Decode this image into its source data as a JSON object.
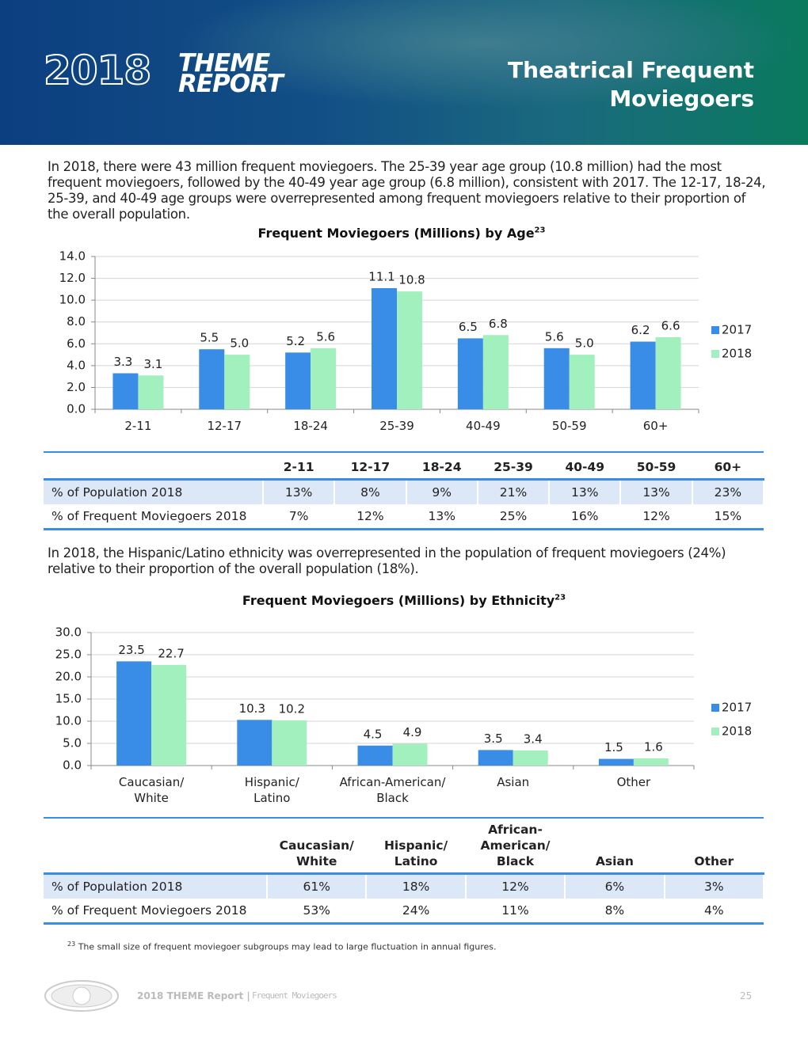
{
  "header": {
    "logo_year": "2018",
    "logo_word1": "THEME",
    "logo_word2": "REPORT",
    "title_line1": "Theatrical Frequent",
    "title_line2": "Moviegoers"
  },
  "intro": "In 2018, there were 43 million frequent moviegoers. The 25-39 year age group (10.8 million) had the most frequent moviegoers, followed by the 40-49 year age group (6.8 million), consistent with 2017. The 12-17, 18-24, 25-39, and 40-49 age groups were overrepresented among frequent moviegoers relative to their proportion of the overall population.",
  "chart_data": [
    {
      "type": "bar",
      "title": "Frequent Moviegoers (Millions) by Age",
      "title_superscript": "23",
      "categories": [
        "2-11",
        "12-17",
        "18-24",
        "25-39",
        "40-49",
        "50-59",
        "60+"
      ],
      "series": [
        {
          "name": "2017",
          "color": "#3a8de6",
          "values": [
            3.3,
            5.5,
            5.2,
            11.1,
            6.5,
            5.6,
            6.2
          ],
          "value_labels": [
            "3.3",
            "5.5",
            "5.2",
            "11.1",
            "6.5",
            "5.6",
            "6.2"
          ]
        },
        {
          "name": "2018",
          "color": "#a2f0be",
          "values": [
            3.1,
            5.0,
            5.6,
            10.8,
            6.8,
            5.0,
            6.6
          ],
          "value_labels": [
            "3.1",
            "5.0",
            "5.6",
            "10.8",
            "6.8",
            "5.0",
            "6.6"
          ]
        }
      ],
      "ylim": [
        0,
        14
      ],
      "yticks": [
        {
          "value": 0,
          "label": "0.0"
        },
        {
          "value": 2,
          "label": "2.0"
        },
        {
          "value": 4,
          "label": "4.0"
        },
        {
          "value": 6,
          "label": "6.0"
        },
        {
          "value": 8,
          "label": "8.0"
        },
        {
          "value": 10,
          "label": "10.0"
        },
        {
          "value": 12,
          "label": "12.0"
        },
        {
          "value": 14,
          "label": "14.0"
        }
      ],
      "grid": true,
      "legend": "right"
    },
    {
      "type": "bar",
      "title": "Frequent Moviegoers (Millions) by Ethnicity",
      "title_superscript": "23",
      "categories": [
        "Caucasian/\nWhite",
        "Hispanic/\nLatino",
        "African-American/\nBlack",
        "Asian",
        "Other"
      ],
      "series": [
        {
          "name": "2017",
          "color": "#3a8de6",
          "values": [
            23.5,
            10.3,
            4.5,
            3.5,
            1.5
          ],
          "value_labels": [
            "23.5",
            "10.3",
            "4.5",
            "3.5",
            "1.5"
          ]
        },
        {
          "name": "2018",
          "color": "#a2f0be",
          "values": [
            22.7,
            10.2,
            4.9,
            3.4,
            1.6
          ],
          "value_labels": [
            "22.7",
            "10.2",
            "4.9",
            "3.4",
            "1.6"
          ]
        }
      ],
      "ylim": [
        0,
        30
      ],
      "yticks": [
        {
          "value": 0,
          "label": "0.0"
        },
        {
          "value": 5,
          "label": "5.0"
        },
        {
          "value": 10,
          "label": "10.0"
        },
        {
          "value": 15,
          "label": "15.0"
        },
        {
          "value": 20,
          "label": "20.0"
        },
        {
          "value": 25,
          "label": "25.0"
        },
        {
          "value": 30,
          "label": "30.0"
        }
      ],
      "grid": true,
      "legend": "right"
    }
  ],
  "table_age": {
    "columns": [
      "2-11",
      "12-17",
      "18-24",
      "25-39",
      "40-49",
      "50-59",
      "60+"
    ],
    "rows": [
      {
        "label": "% of Population 2018",
        "cells": [
          "13%",
          "8%",
          "9%",
          "21%",
          "13%",
          "13%",
          "23%"
        ]
      },
      {
        "label": "% of Frequent Moviegoers 2018",
        "cells": [
          "7%",
          "12%",
          "13%",
          "25%",
          "16%",
          "12%",
          "15%"
        ]
      }
    ]
  },
  "paragraph2": "In 2018, the Hispanic/Latino ethnicity was overrepresented in the population of frequent moviegoers (24%) relative to their proportion of the overall population (18%).",
  "table_ethnicity": {
    "columns": [
      "Caucasian/\nWhite",
      "Hispanic/\nLatino",
      "African-\nAmerican/\nBlack",
      "Asian",
      "Other"
    ],
    "rows": [
      {
        "label": "% of Population 2018",
        "cells": [
          "61%",
          "18%",
          "12%",
          "6%",
          "3%"
        ]
      },
      {
        "label": "% of Frequent Moviegoers 2018",
        "cells": [
          "53%",
          "24%",
          "11%",
          "8%",
          "4%"
        ]
      }
    ]
  },
  "footnote": {
    "mark": "23",
    "text": "The small size of frequent moviegoer subgroups may lead to large fluctuation in annual figures."
  },
  "footer": {
    "report": "2018 THEME Report |",
    "section": "Frequent Moviegoers",
    "page": "25"
  }
}
